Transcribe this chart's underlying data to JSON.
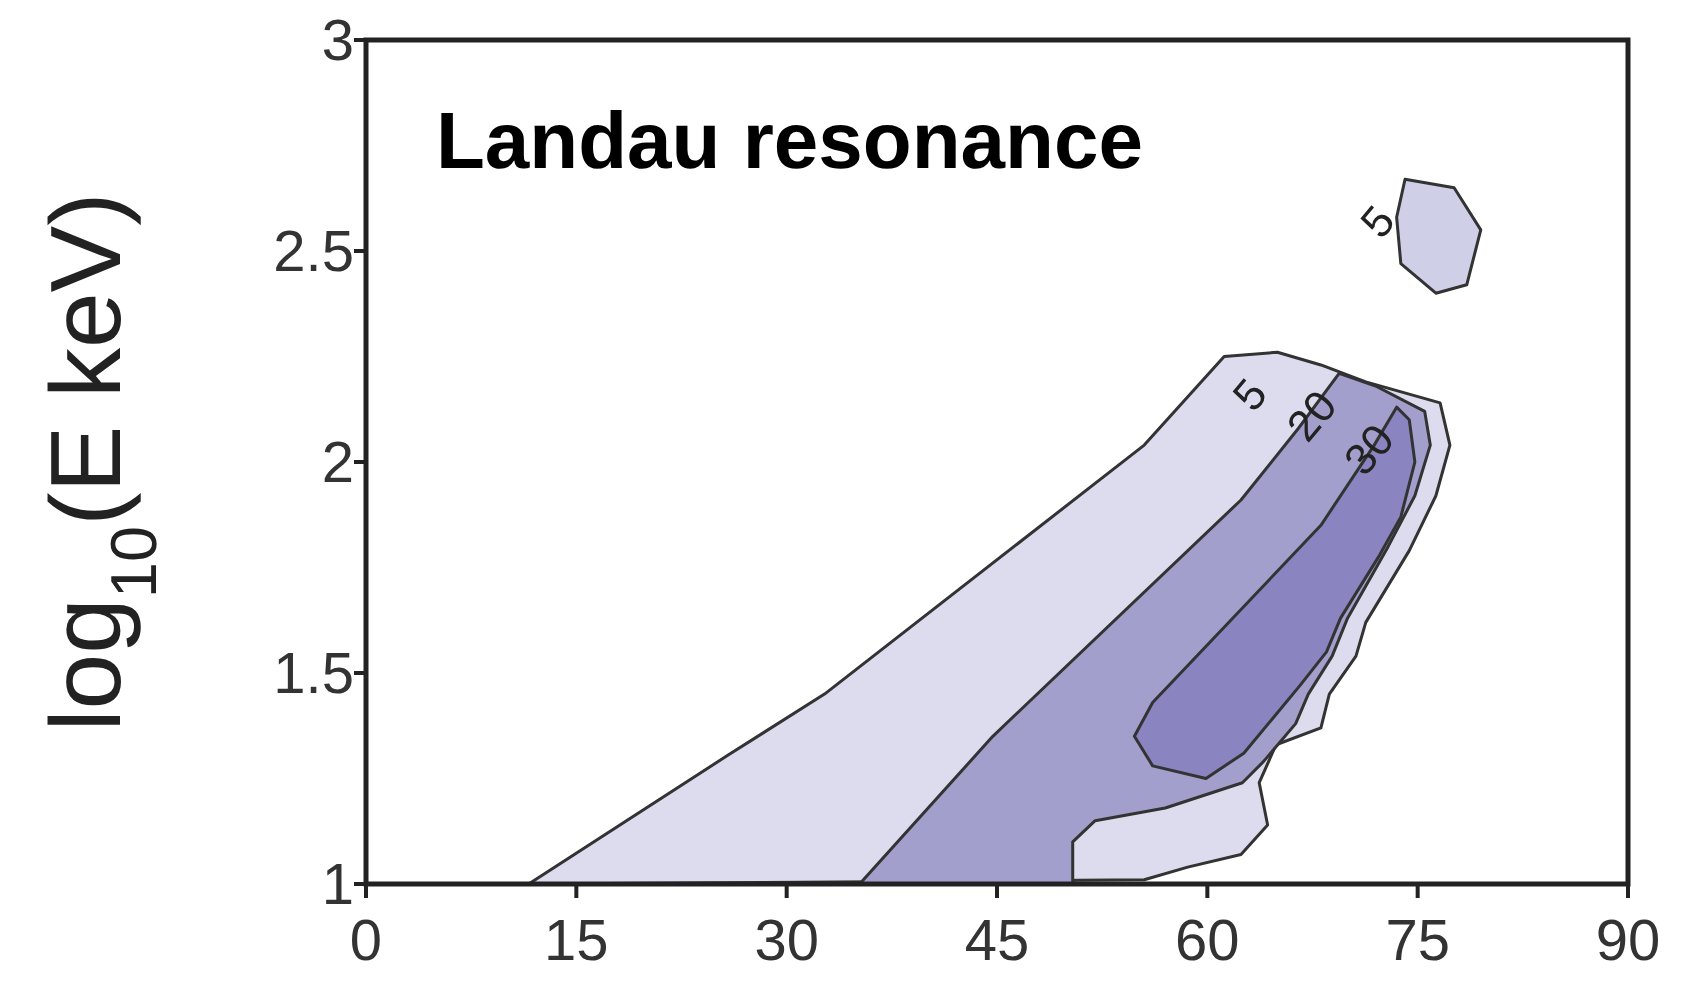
{
  "chart_data": {
    "type": "area",
    "title": "Landau resonance",
    "ylabel": "log$_{10}$(E keV)",
    "xlim": [
      0,
      90
    ],
    "ylim": [
      1,
      3
    ],
    "xticks": [
      0,
      15,
      30,
      45,
      60,
      75,
      90
    ],
    "yticks": [
      1,
      1.5,
      2,
      2.5,
      3
    ],
    "series": [
      {
        "name": "5",
        "color": "#dcdcee",
        "x": [
          11.6,
          25.8,
          32.7,
          55.5,
          61.2,
          65,
          68.1,
          71.3,
          76.6,
          77.3,
          76.3,
          74.4,
          71.3,
          70.6,
          68.7,
          68.1,
          64.9,
          63.7,
          64.3,
          62.4,
          58.6,
          55.5,
          11.6
        ],
        "values": [
          1,
          1.305,
          1.45,
          2.04,
          2.25,
          2.26,
          2.23,
          2.19,
          2.14,
          2.04,
          1.92,
          1.79,
          1.62,
          1.54,
          1.45,
          1.37,
          1.33,
          1.24,
          1.14,
          1.07,
          1.04,
          1.01,
          1
        ]
      },
      {
        "name": "20",
        "color": "#a39fcc",
        "x": [
          35.2,
          44.7,
          62.4,
          66.5,
          69.4,
          72,
          75.5,
          75.9,
          74.8,
          72.9,
          70,
          68.9,
          67.2,
          66.3,
          64,
          62.5,
          57,
          52,
          50.4,
          50.4,
          35.2
        ],
        "values": [
          1,
          1.35,
          1.91,
          2.08,
          2.21,
          2.18,
          2.12,
          2.04,
          1.92,
          1.8,
          1.63,
          1.54,
          1.45,
          1.38,
          1.29,
          1.24,
          1.18,
          1.15,
          1.1,
          1,
          1
        ]
      },
      {
        "name": "30",
        "color": "#8a85c0",
        "x": [
          56.1,
          68.1,
          71.9,
          73.5,
          74.4,
          74.8,
          73.8,
          72.3,
          69.5,
          68.5,
          66.6,
          64.6,
          62.6,
          59.9,
          56.1,
          54.8,
          56.1
        ],
        "values": [
          1.43,
          1.85,
          2.04,
          2.13,
          2.1,
          2.0,
          1.87,
          1.78,
          1.63,
          1.55,
          1.47,
          1.39,
          1.31,
          1.25,
          1.28,
          1.35,
          1.43
        ]
      },
      {
        "name": "5",
        "color": "#d0cfe8",
        "x": [
          74.1,
          77.6,
          79.5,
          78.5,
          76.3,
          73.8,
          73.5,
          74.1
        ],
        "values": [
          2.67,
          2.65,
          2.55,
          2.42,
          2.4,
          2.47,
          2.58,
          2.67
        ]
      }
    ]
  }
}
